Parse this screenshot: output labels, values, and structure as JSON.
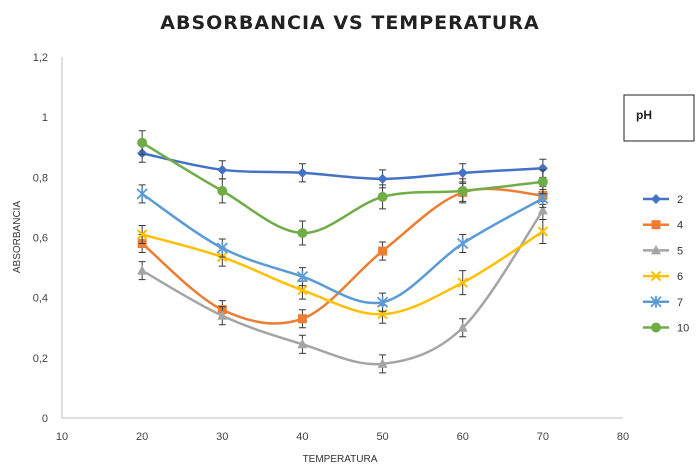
{
  "chart_data": {
    "type": "line",
    "title": "ABSORBANCIA  VS TEMPERATURA",
    "xlabel": "TEMPERATURA",
    "ylabel": "ABSORBANCIA",
    "xlim": [
      10,
      80
    ],
    "ylim": [
      0,
      1.2
    ],
    "xticks": [
      "10",
      "20",
      "30",
      "40",
      "50",
      "60",
      "70",
      "80"
    ],
    "yticks": [
      "0",
      "0,2",
      "0,4",
      "0,6",
      "0,8",
      "1",
      "1,2"
    ],
    "grid": false,
    "legend_title": "pH",
    "legend_position": "right",
    "x": [
      20,
      30,
      40,
      50,
      60,
      70
    ],
    "series": [
      {
        "name": "2",
        "color": "#4472C4",
        "marker": "diamond",
        "values": [
          0.88,
          0.825,
          0.815,
          0.795,
          0.815,
          0.83
        ],
        "errors": [
          0.03,
          0.03,
          0.03,
          0.03,
          0.03,
          0.03
        ]
      },
      {
        "name": "4",
        "color": "#ED7D31",
        "marker": "square",
        "values": [
          0.58,
          0.36,
          0.33,
          0.555,
          0.75,
          0.74
        ],
        "errors": [
          0.03,
          0.03,
          0.03,
          0.03,
          0.03,
          0.03
        ]
      },
      {
        "name": "5",
        "color": "#A5A5A5",
        "marker": "triangle",
        "values": [
          0.49,
          0.34,
          0.245,
          0.18,
          0.3,
          0.69
        ],
        "errors": [
          0.03,
          0.03,
          0.03,
          0.03,
          0.03,
          0.03
        ]
      },
      {
        "name": "6",
        "color": "#FFC000",
        "marker": "x",
        "values": [
          0.61,
          0.535,
          0.425,
          0.345,
          0.45,
          0.62
        ],
        "errors": [
          0.03,
          0.03,
          0.03,
          0.03,
          0.04,
          0.04
        ]
      },
      {
        "name": "7",
        "color": "#5B9BD5",
        "marker": "star",
        "values": [
          0.745,
          0.565,
          0.47,
          0.385,
          0.58,
          0.73
        ],
        "errors": [
          0.03,
          0.03,
          0.03,
          0.03,
          0.03,
          0.03
        ]
      },
      {
        "name": "10",
        "color": "#70AD47",
        "marker": "circle",
        "values": [
          0.915,
          0.755,
          0.615,
          0.735,
          0.755,
          0.785
        ],
        "errors": [
          0.04,
          0.04,
          0.04,
          0.04,
          0.04,
          0.04
        ]
      }
    ]
  }
}
